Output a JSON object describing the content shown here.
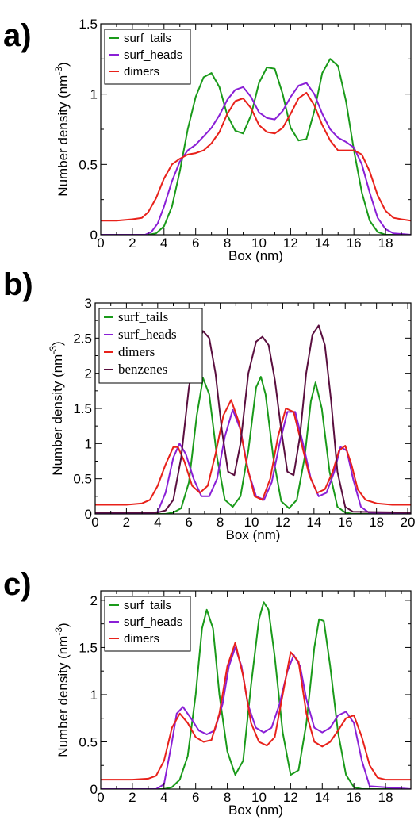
{
  "chart_data": [
    {
      "panel_label": "a)",
      "type": "line",
      "xlabel": "Box (nm)",
      "ylabel": "Number density (nm",
      "ylabel_sup": "-3",
      "ylabel_close": ")",
      "xlim": [
        0,
        19.6
      ],
      "ylim": [
        0,
        1.5
      ],
      "xticks": [
        0,
        2,
        4,
        6,
        8,
        10,
        12,
        14,
        16,
        18
      ],
      "xtick_labels": [
        "0",
        "2",
        "4",
        "6",
        "8",
        "10",
        "12",
        "14",
        "16",
        "18"
      ],
      "yticks": [
        0,
        0.5,
        1,
        1.5
      ],
      "ytick_labels": [
        "0",
        "0.5",
        "1",
        "1.5"
      ],
      "legend_position": "top-left",
      "legend_font": "sans",
      "series": [
        {
          "name": "surf_tails",
          "color": "#1a9a1a",
          "x": [
            0,
            2,
            3,
            3.5,
            4,
            4.5,
            5,
            5.5,
            6,
            6.5,
            7,
            7.5,
            8,
            8.5,
            9,
            9.5,
            10,
            10.5,
            11,
            11.5,
            12,
            12.5,
            13,
            13.5,
            14,
            14.5,
            15,
            15.5,
            16,
            16.5,
            17,
            17.5,
            18,
            19.6
          ],
          "y": [
            0,
            0,
            0,
            0.01,
            0.06,
            0.2,
            0.45,
            0.75,
            0.98,
            1.12,
            1.15,
            1.05,
            0.85,
            0.74,
            0.72,
            0.85,
            1.08,
            1.19,
            1.18,
            1.0,
            0.76,
            0.67,
            0.68,
            0.88,
            1.15,
            1.25,
            1.2,
            0.95,
            0.6,
            0.3,
            0.1,
            0.02,
            0,
            0
          ]
        },
        {
          "name": "surf_heads",
          "color": "#8a1fd6",
          "x": [
            0,
            2.8,
            3.2,
            3.6,
            4,
            4.5,
            5,
            5.5,
            6,
            6.5,
            7,
            7.5,
            8,
            8.5,
            9,
            9.5,
            10,
            10.5,
            11,
            11.5,
            12,
            12.5,
            13,
            13.5,
            14,
            14.5,
            15,
            15.5,
            16,
            16.5,
            17,
            17.5,
            18,
            18.5,
            19.6
          ],
          "y": [
            0,
            0,
            0.02,
            0.08,
            0.2,
            0.38,
            0.52,
            0.6,
            0.64,
            0.7,
            0.76,
            0.85,
            0.96,
            1.03,
            1.05,
            0.98,
            0.87,
            0.83,
            0.82,
            0.88,
            0.98,
            1.06,
            1.08,
            1.0,
            0.86,
            0.75,
            0.69,
            0.66,
            0.62,
            0.5,
            0.3,
            0.12,
            0.04,
            0.01,
            0
          ]
        },
        {
          "name": "dimers",
          "color": "#e8211a",
          "x": [
            0,
            1,
            2,
            2.6,
            3,
            3.5,
            4,
            4.5,
            5,
            5.5,
            6,
            6.5,
            7,
            7.5,
            8,
            8.5,
            9,
            9.5,
            10,
            10.5,
            11,
            11.5,
            12,
            12.5,
            13,
            13.5,
            14,
            14.5,
            15,
            15.5,
            16,
            16.5,
            17,
            17.5,
            18,
            18.5,
            19,
            19.6
          ],
          "y": [
            0.1,
            0.1,
            0.11,
            0.12,
            0.16,
            0.26,
            0.4,
            0.5,
            0.54,
            0.57,
            0.58,
            0.6,
            0.65,
            0.73,
            0.86,
            0.95,
            0.97,
            0.9,
            0.78,
            0.73,
            0.72,
            0.76,
            0.86,
            0.97,
            1.01,
            0.92,
            0.78,
            0.67,
            0.6,
            0.6,
            0.6,
            0.57,
            0.45,
            0.28,
            0.17,
            0.12,
            0.11,
            0.1
          ]
        }
      ]
    },
    {
      "panel_label": "b)",
      "type": "line",
      "xlabel": "Box (nm)",
      "ylabel": "Number density (nm",
      "ylabel_sup": "-3",
      "ylabel_close": ")",
      "xlim": [
        0,
        20.2
      ],
      "ylim": [
        0,
        3
      ],
      "xticks": [
        0,
        2,
        4,
        6,
        8,
        10,
        12,
        14,
        16,
        18,
        20
      ],
      "xtick_labels": [
        "0",
        "2",
        "4",
        "6",
        "8",
        "10",
        "12",
        "14",
        "16",
        "18",
        "20"
      ],
      "yticks": [
        0,
        0.5,
        1,
        1.5,
        2,
        2.5,
        3
      ],
      "ytick_labels": [
        "0",
        "0.5",
        "1",
        "1.5",
        "2",
        "2.5",
        "3"
      ],
      "legend_position": "top-left",
      "legend_font": "serif",
      "series": [
        {
          "name": "surf_tails",
          "color": "#1a9a1a",
          "x": [
            0,
            4.5,
            5,
            5.5,
            6,
            6.5,
            6.9,
            7.3,
            7.8,
            8.3,
            8.8,
            9.3,
            9.8,
            10.3,
            10.6,
            10.9,
            11.4,
            11.9,
            12.4,
            12.9,
            13.4,
            13.8,
            14.1,
            14.5,
            15,
            15.5,
            16,
            16.5,
            20.2
          ],
          "y": [
            0,
            0,
            0.02,
            0.08,
            0.45,
            1.4,
            1.93,
            1.7,
            0.8,
            0.2,
            0.1,
            0.25,
            0.9,
            1.8,
            1.95,
            1.7,
            0.8,
            0.18,
            0.08,
            0.2,
            0.8,
            1.6,
            1.87,
            1.5,
            0.6,
            0.1,
            0.02,
            0,
            0
          ]
        },
        {
          "name": "surf_heads",
          "color": "#8a1fd6",
          "x": [
            0,
            3.5,
            4,
            4.5,
            5,
            5.4,
            5.8,
            6.3,
            6.8,
            7.3,
            7.8,
            8.3,
            8.8,
            9.3,
            9.8,
            10.3,
            10.8,
            11.3,
            11.8,
            12.3,
            12.8,
            13.3,
            13.8,
            14.3,
            14.8,
            15.3,
            15.7,
            16.1,
            16.5,
            17,
            17.5,
            20.2
          ],
          "y": [
            0,
            0,
            0.03,
            0.3,
            0.8,
            1.0,
            0.85,
            0.5,
            0.25,
            0.25,
            0.5,
            1.1,
            1.48,
            1.2,
            0.6,
            0.25,
            0.2,
            0.45,
            1.0,
            1.45,
            1.45,
            1.0,
            0.5,
            0.25,
            0.3,
            0.6,
            0.95,
            0.9,
            0.5,
            0.1,
            0.02,
            0
          ]
        },
        {
          "name": "dimers",
          "color": "#e8211a",
          "x": [
            0,
            2,
            3,
            3.5,
            4,
            4.5,
            5,
            5.3,
            5.7,
            6.2,
            6.7,
            7.2,
            7.7,
            8.2,
            8.7,
            9.2,
            9.7,
            10.2,
            10.7,
            11.2,
            11.7,
            12.2,
            12.7,
            13.2,
            13.7,
            14.2,
            14.7,
            15.2,
            15.6,
            16,
            16.4,
            16.8,
            17.3,
            18,
            19,
            20.2
          ],
          "y": [
            0.13,
            0.13,
            0.15,
            0.2,
            0.4,
            0.7,
            0.95,
            0.95,
            0.75,
            0.4,
            0.3,
            0.4,
            0.85,
            1.4,
            1.62,
            1.3,
            0.7,
            0.25,
            0.2,
            0.5,
            1.1,
            1.5,
            1.45,
            1.0,
            0.55,
            0.3,
            0.35,
            0.6,
            0.9,
            0.97,
            0.7,
            0.35,
            0.2,
            0.15,
            0.13,
            0.13
          ]
        },
        {
          "name": "benzenes",
          "color": "#5a0f3f",
          "x": [
            0,
            4,
            4.5,
            5,
            5.5,
            6,
            6.5,
            6.9,
            7.3,
            7.7,
            8.1,
            8.5,
            8.9,
            9.3,
            9.8,
            10.3,
            10.7,
            11.1,
            11.5,
            11.9,
            12.3,
            12.7,
            13.1,
            13.5,
            13.9,
            14.3,
            14.7,
            15.1,
            15.5,
            16,
            16.5,
            20.2
          ],
          "y": [
            0.02,
            0.02,
            0.05,
            0.2,
            0.8,
            1.8,
            2.4,
            2.6,
            2.5,
            2.0,
            1.2,
            0.6,
            0.55,
            1.0,
            2.0,
            2.45,
            2.52,
            2.4,
            1.9,
            1.2,
            0.6,
            0.55,
            1.1,
            2.0,
            2.55,
            2.68,
            2.4,
            1.6,
            0.6,
            0.1,
            0.03,
            0.02
          ]
        }
      ]
    },
    {
      "panel_label": "c)",
      "type": "line",
      "xlabel": "Box (nm)",
      "ylabel": "Number density (nm",
      "ylabel_sup": "-3",
      "ylabel_close": ")",
      "xlim": [
        0,
        19.6
      ],
      "ylim": [
        0,
        2.1
      ],
      "xticks": [
        0,
        2,
        4,
        6,
        8,
        10,
        12,
        14,
        16,
        18
      ],
      "xtick_labels": [
        "0",
        "2",
        "4",
        "6",
        "8",
        "10",
        "12",
        "14",
        "16",
        "18"
      ],
      "yticks": [
        0,
        0.5,
        1,
        1.5,
        2
      ],
      "ytick_labels": [
        "0",
        "0.5",
        "1",
        "1.5",
        "2"
      ],
      "legend_position": "top-left",
      "legend_font": "sans",
      "series": [
        {
          "name": "surf_tails",
          "color": "#1a9a1a",
          "x": [
            0,
            4,
            4.5,
            5,
            5.5,
            6,
            6.4,
            6.7,
            7.1,
            7.5,
            8,
            8.5,
            9,
            9.5,
            10,
            10.3,
            10.6,
            11,
            11.5,
            12,
            12.5,
            13,
            13.5,
            13.8,
            14.1,
            14.5,
            15,
            15.5,
            16,
            16.5,
            19.6
          ],
          "y": [
            0,
            0,
            0.02,
            0.1,
            0.35,
            1.0,
            1.7,
            1.9,
            1.7,
            1.0,
            0.4,
            0.15,
            0.3,
            1.1,
            1.8,
            1.98,
            1.9,
            1.4,
            0.6,
            0.15,
            0.2,
            0.7,
            1.5,
            1.8,
            1.78,
            1.3,
            0.6,
            0.15,
            0.02,
            0,
            0
          ]
        },
        {
          "name": "surf_heads",
          "color": "#8a1fd6",
          "x": [
            0,
            3.5,
            4,
            4.5,
            4.8,
            5.2,
            5.7,
            6.2,
            6.7,
            7.2,
            7.7,
            8.1,
            8.5,
            8.9,
            9.3,
            9.8,
            10.3,
            10.8,
            11.3,
            11.8,
            12.2,
            12.6,
            13.0,
            13.5,
            14,
            14.5,
            15,
            15.5,
            16,
            16.5,
            17,
            19.6
          ],
          "y": [
            0,
            0,
            0.05,
            0.5,
            0.8,
            0.87,
            0.75,
            0.62,
            0.58,
            0.62,
            0.9,
            1.3,
            1.5,
            1.3,
            0.9,
            0.65,
            0.6,
            0.65,
            0.9,
            1.25,
            1.42,
            1.3,
            0.95,
            0.65,
            0.6,
            0.65,
            0.78,
            0.82,
            0.7,
            0.3,
            0.03,
            0
          ]
        },
        {
          "name": "dimers",
          "color": "#e8211a",
          "x": [
            0,
            2,
            3,
            3.5,
            4,
            4.5,
            5,
            5.5,
            6,
            6.5,
            7,
            7.5,
            8,
            8.5,
            9,
            9.5,
            10,
            10.5,
            11,
            11.5,
            12,
            12.5,
            13,
            13.5,
            14,
            14.5,
            15,
            15.5,
            16,
            16.5,
            17,
            17.5,
            18,
            19.6
          ],
          "y": [
            0.1,
            0.1,
            0.11,
            0.14,
            0.3,
            0.65,
            0.8,
            0.7,
            0.55,
            0.5,
            0.52,
            0.8,
            1.3,
            1.55,
            1.2,
            0.7,
            0.5,
            0.46,
            0.55,
            1.0,
            1.45,
            1.35,
            0.8,
            0.5,
            0.45,
            0.5,
            0.62,
            0.75,
            0.78,
            0.55,
            0.25,
            0.12,
            0.1,
            0.1
          ]
        }
      ]
    }
  ]
}
